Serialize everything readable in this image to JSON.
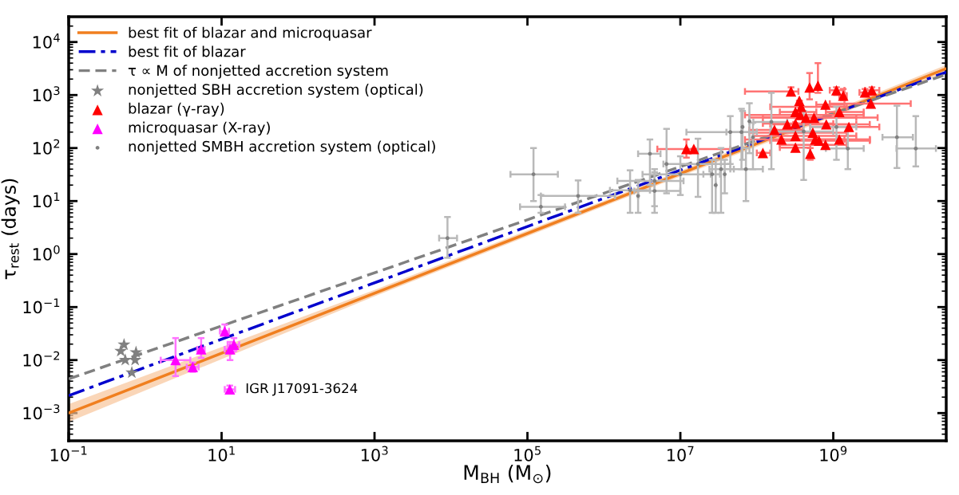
{
  "chart_data": {
    "type": "scatter",
    "xlabel": "M$_{BH}$ (M$_{⊙}$)",
    "ylabel": "τ$_{rest}$ (days)",
    "log": "xy",
    "grid": false,
    "legend": "top left",
    "xlim": [
      0.1,
      30000000000.0
    ],
    "ylim": [
      0.0003,
      30000
    ],
    "xticks": [
      {
        "value": 0.1,
        "label": "10$^{−1}$"
      },
      {
        "value": 10,
        "label": "10$^{1}$"
      },
      {
        "value": 1000,
        "label": "10$^{3}$"
      },
      {
        "value": 100000,
        "label": "10$^{5}$"
      },
      {
        "value": 10000000,
        "label": "10$^{7}$"
      },
      {
        "value": 1000000000,
        "label": "10$^{9}$"
      }
    ],
    "yticks": [
      {
        "value": 0.001,
        "label": "10$^{−3}$"
      },
      {
        "value": 0.01,
        "label": "10$^{−2}$"
      },
      {
        "value": 0.1,
        "label": "10$^{−1}$"
      },
      {
        "value": 1,
        "label": "10$^{0}$"
      },
      {
        "value": 10,
        "label": "10$^{1}$"
      },
      {
        "value": 100,
        "label": "10$^{2}$"
      },
      {
        "value": 1000,
        "label": "10$^{3}$"
      },
      {
        "value": 10000,
        "label": "10$^{4}$"
      }
    ],
    "annotations": [
      {
        "text": "IGR J17091-3624",
        "x": 12.8,
        "y": 0.0028
      }
    ],
    "series": [
      {
        "name": "best fit of blazar and microquasar",
        "type": "line",
        "color": "#f07f1f",
        "line_style": "solid",
        "marker": "none",
        "x": [
          0.1,
          1000,
          1000000,
          1000000000,
          30000000000
        ],
        "values": [
          0.001,
          0.182,
          9.0,
          447,
          3160
        ],
        "lower": [
          0.00068,
          0.16,
          8.0,
          390,
          2700
        ],
        "upper": [
          0.00148,
          0.21,
          10.1,
          510,
          3700
        ]
      },
      {
        "name": "best fit of blazar",
        "type": "line",
        "color": "#0000cd",
        "line_style": "dashdot",
        "marker": "none",
        "x": [
          0.1,
          30000000000
        ],
        "values": [
          0.00214,
          2700
        ]
      },
      {
        "name": "τ ∝ M of nonjetted accretion system",
        "type": "line",
        "color": "#808080",
        "line_style": "dashed",
        "marker": "none",
        "x": [
          0.1,
          30000000000
        ],
        "values": [
          0.0044,
          2450
        ]
      },
      {
        "name": "nonjetted SBH accretion system (optical)",
        "type": "scatter",
        "color": "#808080",
        "marker": "star",
        "x": [
          0.53,
          0.48,
          0.76,
          0.55,
          0.74,
          0.67
        ],
        "values": [
          0.0195,
          0.0148,
          0.014,
          0.01,
          0.01,
          0.0058
        ]
      },
      {
        "name": "blazar (γ-ray)",
        "type": "scatter",
        "color": "#ff0000",
        "marker": "triangle",
        "x": [
          12000000.0,
          15000000.0,
          120000000.0,
          170000000.0,
          210000000.0,
          250000000.0,
          280000000.0,
          320000000.0,
          320000000.0,
          320000000.0,
          320000000.0,
          360000000.0,
          380000000.0,
          370000000.0,
          490000000.0,
          440000000.0,
          510000000.0,
          560000000.0,
          500000000.0,
          540000000.0,
          580000000.0,
          630000000.0,
          650000000.0,
          790000000.0,
          810000000.0,
          790000000.0,
          1100000000.0,
          1200000000.0,
          1200000000.0,
          1350000000.0,
          1600000000.0,
          2600000000.0,
          3200000000.0,
          3100000000.0
        ],
        "values": [
          96,
          96,
          81,
          220,
          145,
          280,
          1170,
          480,
          290,
          170,
          102,
          780,
          600,
          420,
          1390,
          375,
          null,
          375,
          78,
          195,
          145,
          1500,
          138,
          660,
          280,
          115,
          1230,
          480,
          145,
          980,
          250,
          1120,
          1230,
          690
        ],
        "xerrors": [
          [
            5000000.0,
            45000000.0
          ],
          null,
          [
            100000000.0,
            150000000.0
          ],
          [
            80000000.0,
            400000000.0
          ],
          [
            70000000.0,
            1400000000.0
          ],
          [
            150000000.0,
            3000000000.0
          ],
          [
            70000000.0,
            350000000.0
          ],
          [
            200000000.0,
            600000000.0
          ],
          [
            120000000.0,
            1000000000.0
          ],
          [
            90000000.0,
            2000000000.0
          ],
          [
            200000000.0,
            500000000.0
          ],
          null,
          [
            150000000.0,
            1500000000.0
          ],
          [
            70000000.0,
            2500000000.0
          ],
          null,
          [
            80000000.0,
            3800000000.0
          ],
          null,
          [
            120000000.0,
            2000000000.0
          ],
          null,
          [
            80000000.0,
            1500000000.0
          ],
          [
            200000000.0,
            3000000000.0
          ],
          null,
          [
            150000000.0,
            3000000000.0
          ],
          [
            600000000.0,
            1400000000.0
          ],
          [
            300000000.0,
            2000000000.0
          ],
          [
            200000000.0,
            1500000000.0
          ],
          [
            900000000.0,
            1400000000.0
          ],
          [
            800000000.0,
            2500000000.0
          ],
          [
            600000000.0,
            3000000000.0
          ],
          [
            1200000000.0,
            1500000000.0
          ],
          [
            500000000.0,
            4000000000.0
          ],
          [
            2200000000.0,
            3200000000.0
          ],
          [
            2600000000.0,
            4000000000.0
          ],
          [
            900000000.0,
            10300000000.0
          ]
        ],
        "errors": [
          [
            66,
            145
          ],
          null,
          null,
          null,
          null,
          null,
          [
            1000,
            1400
          ],
          null,
          null,
          null,
          null,
          null,
          null,
          null,
          [
            830,
            2600
          ],
          null,
          null,
          null,
          [
            60,
            100
          ],
          null,
          null,
          [
            1100,
            4000
          ],
          null,
          null,
          null,
          null,
          [
            1000,
            1400
          ],
          null,
          null,
          [
            800,
            1300
          ],
          null,
          [
            950,
            1300
          ],
          [
            1000,
            1400
          ],
          null
        ]
      },
      {
        "name": "microquasar (X-ray)",
        "type": "scatter",
        "color": "#ff00ff",
        "marker": "triangle",
        "x": [
          2.5,
          4.2,
          5.4,
          11,
          12.9,
          14.5,
          12.8
        ],
        "values": [
          0.01,
          0.0074,
          0.016,
          0.035,
          0.016,
          0.0195,
          0.0028
        ],
        "xerrors": [
          [
            1.6,
            3.9
          ],
          [
            3.5,
            5
          ],
          [
            4.8,
            6
          ],
          [
            9.5,
            12.5
          ],
          [
            11,
            15
          ],
          [
            12,
            17
          ],
          [
            11,
            15
          ]
        ],
        "errors": [
          [
            0.005,
            0.026
          ],
          [
            0.006,
            0.009
          ],
          [
            0.011,
            0.026
          ],
          [
            0.029,
            0.047
          ],
          [
            0.01,
            0.022
          ],
          [
            0.015,
            0.026
          ],
          [
            0.0024,
            0.0033
          ]
        ]
      },
      {
        "name": "nonjetted SMBH accretion system (optical)",
        "type": "scatter",
        "color": "#808080",
        "marker": "circle",
        "x": [
          9000,
          120000.0,
          150000.0,
          460000.0,
          2200000.0,
          2800000.0,
          4000000.0,
          4600000.0,
          4600000.0,
          6600000.0,
          10000000.0,
          17000000.0,
          26000000.0,
          29000000.0,
          34000000.0,
          38000000.0,
          45000000.0,
          63000000.0,
          65000000.0,
          80000000.0,
          72000000.0,
          89000000.0,
          155000000.0,
          410000000.0,
          1100000000.0,
          1550000000.0,
          6800000000.0,
          12000000000.0
        ],
        "values": [
          2.0,
          32,
          7.8,
          12.5,
          16,
          12.5,
          78,
          15.5,
          24,
          50,
          32,
          50,
          32,
          20,
          40,
          32,
          200,
          200,
          250,
          320,
          40,
          160,
          310,
          205,
          250,
          98,
          160,
          98
        ],
        "xerrors": [
          [
            7000,
            12000
          ],
          [
            60000.0,
            250000.0
          ],
          [
            80000.0,
            310000.0
          ],
          [
            150000.0,
            1400000.0
          ],
          [
            1200000.0,
            4000000.0
          ],
          null,
          [
            2800000.0,
            5500000.0
          ],
          [
            2500000.0,
            10000000.0
          ],
          [
            1500000.0,
            11000000.0
          ],
          null,
          [
            3200000.0,
            25000000.0
          ],
          [
            6000000.0,
            45000000.0
          ],
          [
            20000000.0,
            33000000.0
          ],
          null,
          [
            24000000.0,
            50000000.0
          ],
          null,
          [
            12000000.0,
            100000000.0
          ],
          [
            40000000.0,
            100000000.0
          ],
          null,
          null,
          [
            45000000.0,
            120000000.0
          ],
          null,
          [
            90000000.0,
            250000000.0
          ],
          [
            150000000.0,
            1000000000.0
          ],
          [
            500000000.0,
            2000000000.0
          ],
          [
            800000000.0,
            2500000000.0
          ],
          [
            4400000000.0,
            11000000000.0
          ],
          [
            6700000000.0,
            22000000000.0
          ]
        ],
        "errors": [
          [
            0.85,
            5
          ],
          [
            10,
            100
          ],
          [
            6,
            13
          ],
          [
            6,
            24.5
          ],
          [
            6,
            38
          ],
          [
            6,
            25
          ],
          [
            20,
            145
          ],
          [
            6,
            35
          ],
          [
            8,
            40
          ],
          [
            14,
            230
          ],
          [
            13,
            70
          ],
          [
            12,
            150
          ],
          [
            6,
            60
          ],
          [
            6,
            60
          ],
          [
            6,
            100
          ],
          [
            14,
            60
          ],
          [
            50,
            400
          ],
          [
            40,
            550
          ],
          [
            60,
            500
          ],
          [
            80,
            700
          ],
          [
            10,
            100
          ],
          [
            40,
            300
          ],
          [
            40,
            1100
          ],
          [
            25,
            500
          ],
          [
            60,
            600
          ],
          [
            40,
            250
          ],
          [
            42,
            630
          ],
          [
            45,
            400
          ]
        ]
      }
    ]
  }
}
